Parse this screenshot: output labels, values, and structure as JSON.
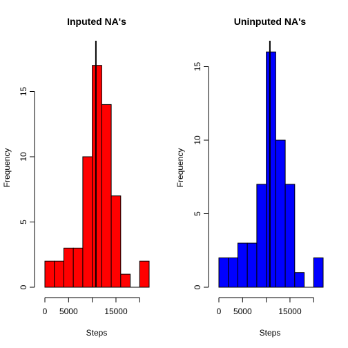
{
  "chart_data": [
    {
      "type": "bar",
      "title": "Inputed NA's",
      "xlabel": "Steps",
      "ylabel": "Frequency",
      "bar_color": "#ff0000",
      "bin_width": 2000,
      "bin_starts": [
        0,
        2000,
        4000,
        6000,
        8000,
        10000,
        12000,
        14000,
        16000,
        18000,
        20000
      ],
      "values": [
        2,
        2,
        3,
        3,
        10,
        17,
        14,
        7,
        1,
        0,
        2
      ],
      "xlim": [
        0,
        22000
      ],
      "ylim": [
        0,
        17
      ],
      "x_ticks": [
        0,
        5000,
        10000,
        15000,
        20000
      ],
      "x_tick_labels": [
        "0",
        "5000",
        "",
        "15000",
        ""
      ],
      "y_ticks": [
        0,
        5,
        10,
        15
      ],
      "y_tick_labels": [
        "0",
        "5",
        "10",
        "15"
      ],
      "mean_line": 10766
    },
    {
      "type": "bar",
      "title": "Uninputed NA's",
      "xlabel": "Steps",
      "ylabel": "Frequency",
      "bar_color": "#0000ff",
      "bin_width": 2000,
      "bin_starts": [
        0,
        2000,
        4000,
        6000,
        8000,
        10000,
        12000,
        14000,
        16000,
        18000,
        20000
      ],
      "values": [
        2,
        2,
        3,
        3,
        7,
        16,
        10,
        7,
        1,
        0,
        2
      ],
      "xlim": [
        0,
        22000
      ],
      "ylim": [
        0,
        16
      ],
      "x_ticks": [
        0,
        5000,
        10000,
        15000,
        20000
      ],
      "x_tick_labels": [
        "0",
        "5000",
        "",
        "15000",
        ""
      ],
      "y_ticks": [
        0,
        5,
        10,
        15
      ],
      "y_tick_labels": [
        "0",
        "5",
        "10",
        "15"
      ],
      "mean_line": 10766
    }
  ]
}
